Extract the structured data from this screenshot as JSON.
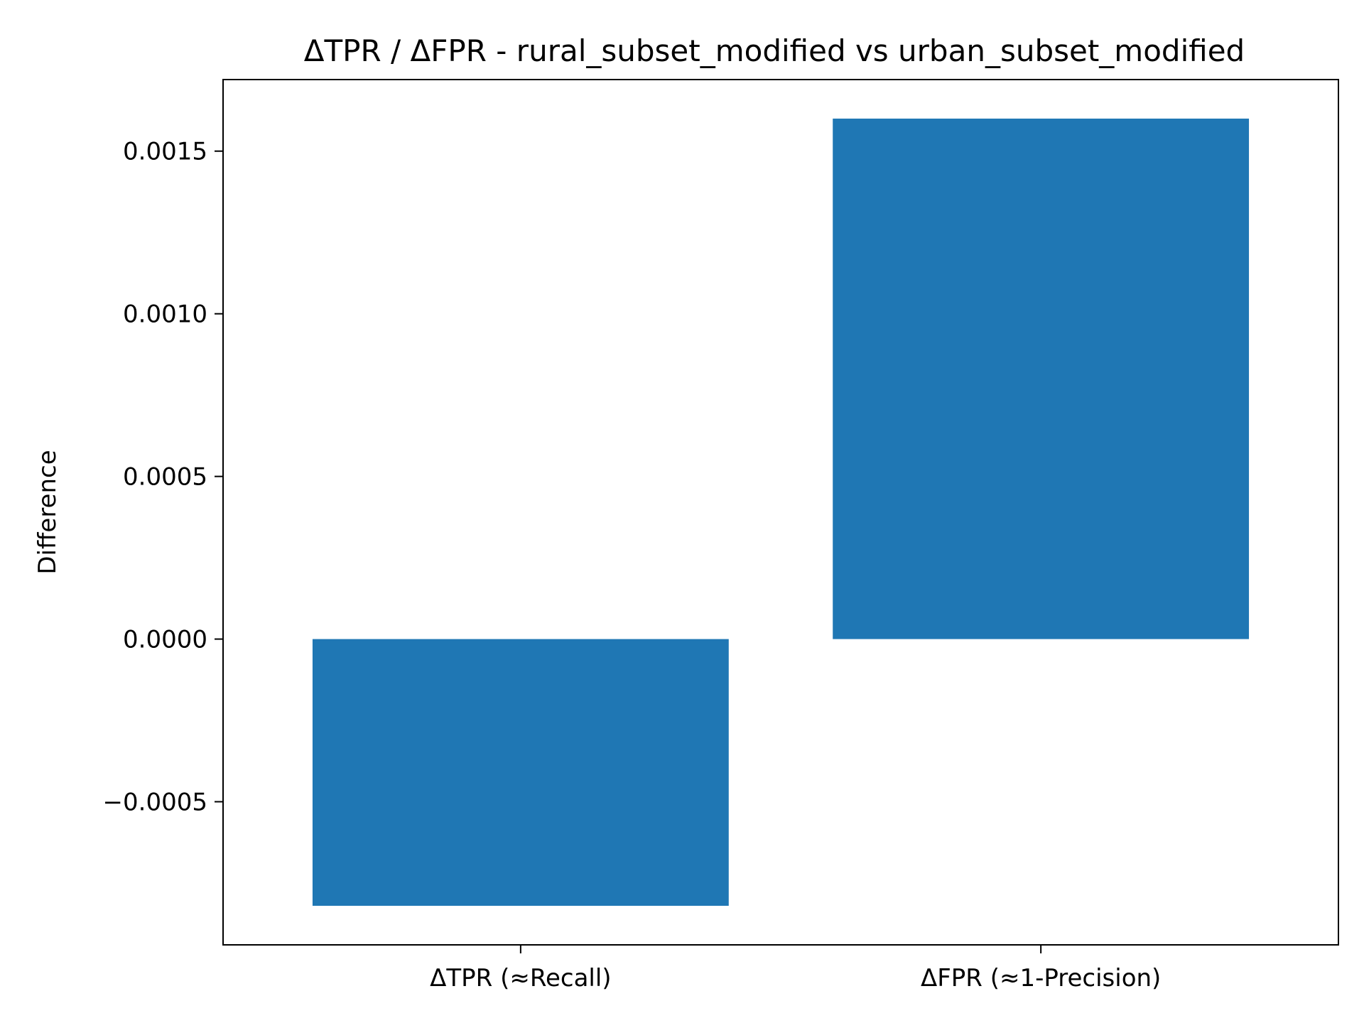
{
  "chart_data": {
    "type": "bar",
    "title": "ΔTPR / ΔFPR - rural_subset_modified vs urban_subset_modified",
    "xlabel": "",
    "ylabel": "Difference",
    "categories": [
      "ΔTPR (≈Recall)",
      "ΔFPR (≈1-Precision)"
    ],
    "values": [
      -0.00082,
      0.0016
    ],
    "ylim": [
      -0.00094,
      0.00172
    ],
    "yticks": [
      -0.0005,
      0.0,
      0.0005,
      0.001,
      0.0015
    ],
    "ytick_labels": [
      "−0.0005",
      "0.0000",
      "0.0005",
      "0.0010",
      "0.0015"
    ],
    "grid": false,
    "bar_color": "#1f77b4"
  }
}
